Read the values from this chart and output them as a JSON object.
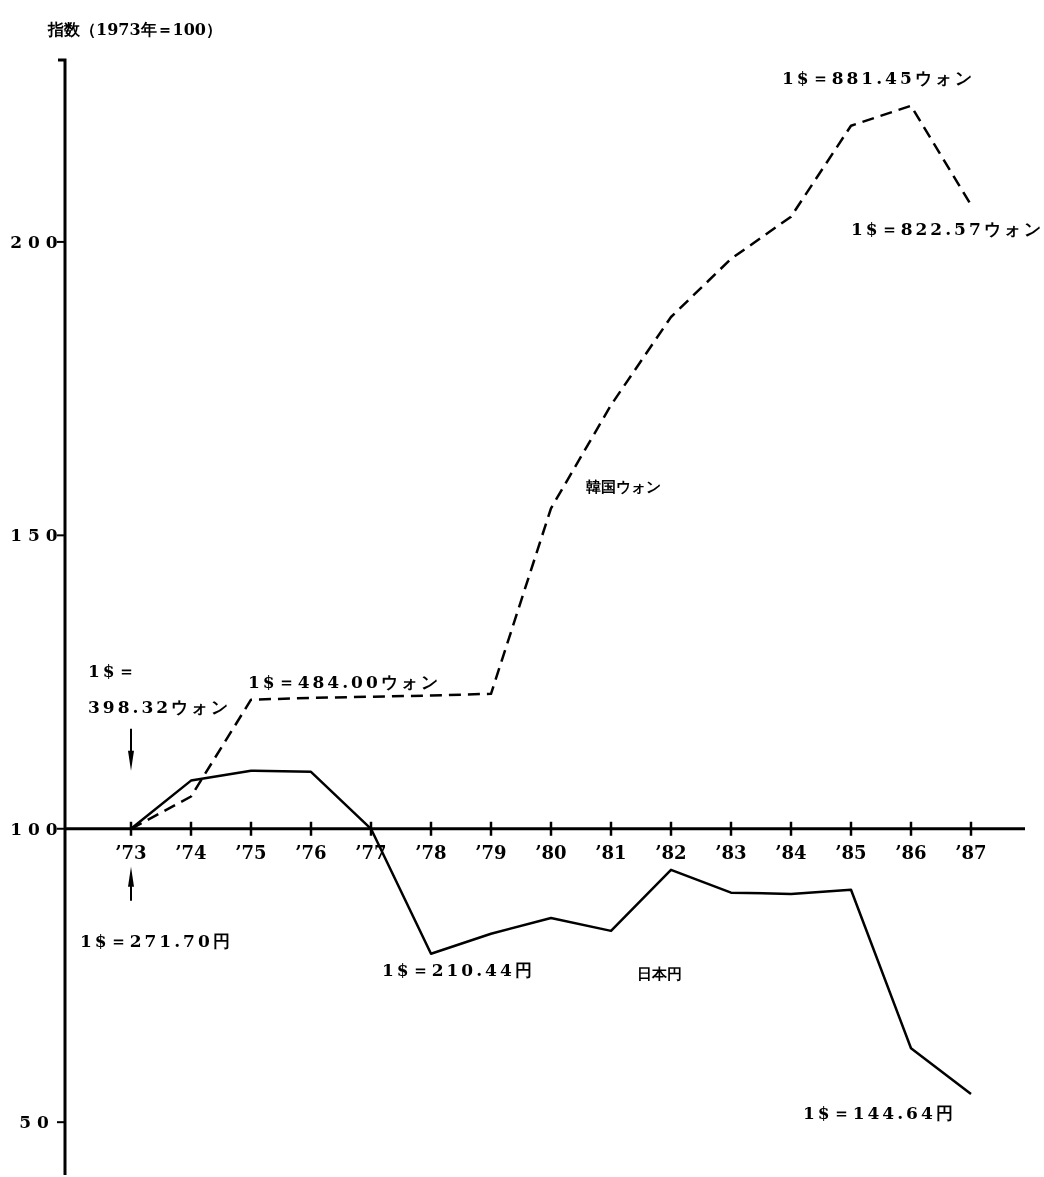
{
  "chart_data": {
    "type": "line",
    "ylabel": "指数（1973年＝100）",
    "x": [
      1973,
      1974,
      1975,
      1976,
      1977,
      1978,
      1979,
      1980,
      1981,
      1982,
      1983,
      1984,
      1985,
      1986,
      1987
    ],
    "series": [
      {
        "name": "韓国ウォン",
        "color": "#000000",
        "line_style": "dashed",
        "values": [
          100,
          105.5,
          122.0,
          122.3,
          122.5,
          122.7,
          123.0,
          154.6,
          172.2,
          187.2,
          197.1,
          204.3,
          219.8,
          223.2,
          206.3
        ]
      },
      {
        "name": "日本円",
        "color": "#000000",
        "line_style": "solid",
        "values": [
          100,
          108.2,
          109.9,
          109.7,
          100,
          78.7,
          82.1,
          84.8,
          82.6,
          93.0,
          89.1,
          88.9,
          89.6,
          62.6,
          54.8
        ]
      }
    ],
    "xlim": [
      1971.9,
      1987.9
    ],
    "ylim": [
      41,
      231
    ],
    "xticks": [
      {
        "value": 1973,
        "label": "’73"
      },
      {
        "value": 1974,
        "label": "’74"
      },
      {
        "value": 1975,
        "label": "’75"
      },
      {
        "value": 1976,
        "label": "’76"
      },
      {
        "value": 1977,
        "label": "’77"
      },
      {
        "value": 1978,
        "label": "’78"
      },
      {
        "value": 1979,
        "label": "’79"
      },
      {
        "value": 1980,
        "label": "’80"
      },
      {
        "value": 1981,
        "label": "’81"
      },
      {
        "value": 1982,
        "label": "’82"
      },
      {
        "value": 1983,
        "label": "’83"
      },
      {
        "value": 1984,
        "label": "’84"
      },
      {
        "value": 1985,
        "label": "’85"
      },
      {
        "value": 1986,
        "label": "’86"
      },
      {
        "value": 1987,
        "label": "’87"
      }
    ],
    "yticks": [
      50,
      100,
      150,
      200
    ],
    "annotations": [
      "1$＝ 398.32ウォン",
      "1$＝271.70円",
      {
        "text": "1$＝484.00ウォン",
        "x": 1975,
        "y": 122.0
      },
      {
        "text": "1$＝210.44円",
        "x": 1978,
        "y": 78.7
      },
      {
        "text": "1$＝881.45ウォン",
        "x": 1986,
        "y": 223.2
      },
      {
        "text": "1$＝822.57ウォン",
        "x": 1987,
        "y": 206.3
      },
      {
        "text": "1$＝144.64円",
        "x": 1987,
        "y": 54.8
      }
    ],
    "grid": false,
    "marker": "none"
  }
}
